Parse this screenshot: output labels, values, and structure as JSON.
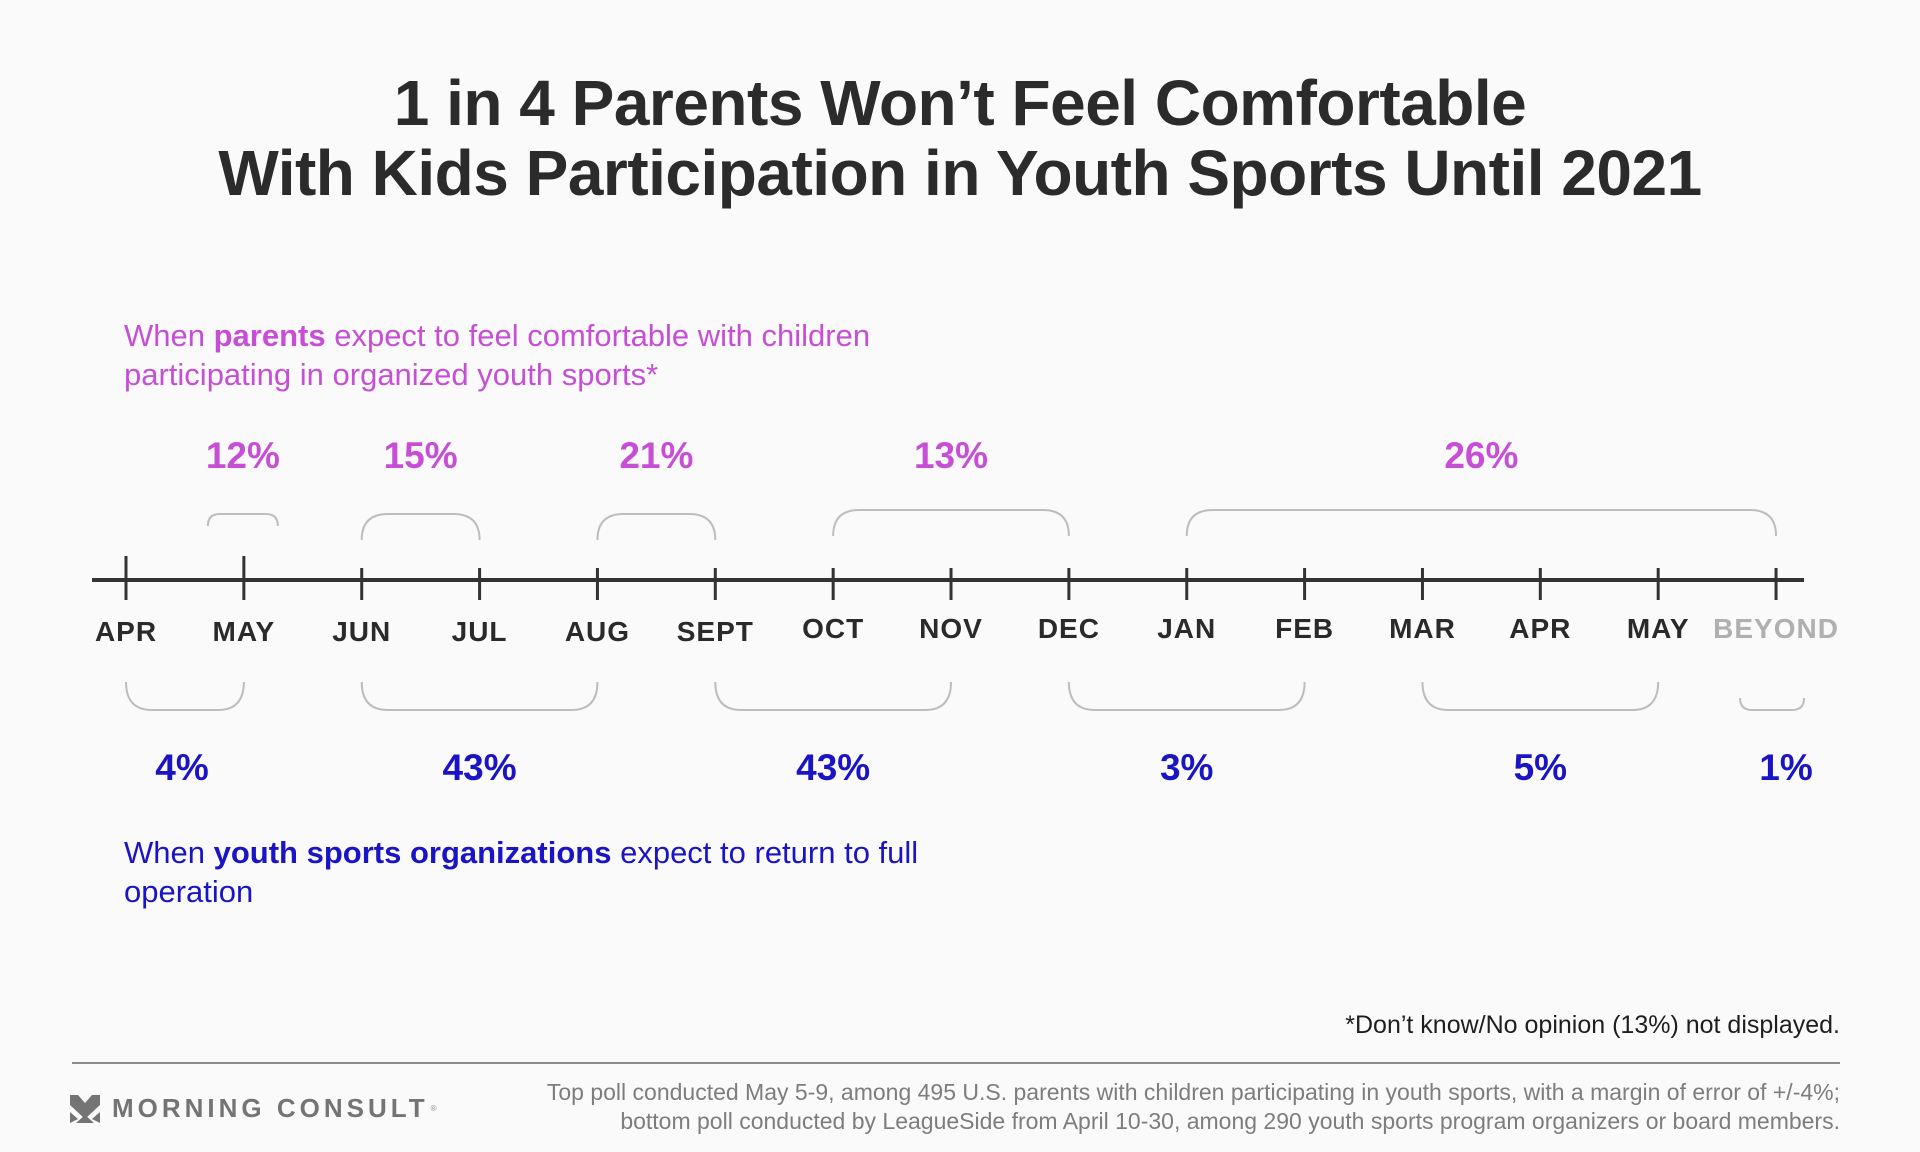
{
  "title": {
    "line1": "1 in 4 Parents Won’t Feel Comfortable",
    "line2": "With Kids Participation in Youth Sports Until 2021"
  },
  "top_label": {
    "prefix": "When ",
    "bold": "parents",
    "suffix": " expect to feel comfortable with children participating in organized youth sports*"
  },
  "bottom_label": {
    "prefix": "When ",
    "bold": "youth sports organizations",
    "suffix": " expect to return to full operation"
  },
  "footnote": "*Don’t know/No opinion (13%) not displayed.",
  "logo": {
    "icon": "morning-consult-chevron-icon",
    "text": "MORNING CONSULT",
    "reg": "®"
  },
  "source": {
    "line1": "Top poll conducted May 5-9, among 495 U.S. parents with children participating in youth sports, with a margin of error of +/-4%;",
    "line2": "bottom poll conducted by LeagueSide from April 10-30, among 290 youth sports program organizers or board members."
  },
  "colors": {
    "parents": "#c64fd6",
    "organizations": "#1a14c4",
    "axis": "#333333",
    "bracket": "#bdbdbd",
    "beyond_label": "#b0b0b0"
  },
  "chart_data": {
    "type": "timeline-brackets",
    "title": "1 in 4 Parents Won’t Feel Comfortable With Kids Participation in Youth Sports Until 2021",
    "axis_ticks": [
      "APR",
      "MAY",
      "JUN",
      "JUL",
      "AUG",
      "SEPT",
      "OCT",
      "NOV",
      "DEC",
      "JAN",
      "FEB",
      "MAR",
      "APR",
      "MAY",
      "BEYOND"
    ],
    "muted_ticks": [
      "BEYOND"
    ],
    "series": [
      {
        "name": "Parents (when they expect to feel comfortable)",
        "position": "above",
        "segments": [
          {
            "label": "12%",
            "value": 12,
            "from": 1,
            "to": 1
          },
          {
            "label": "15%",
            "value": 15,
            "from": 2,
            "to": 3
          },
          {
            "label": "21%",
            "value": 21,
            "from": 4,
            "to": 5
          },
          {
            "label": "13%",
            "value": 13,
            "from": 6,
            "to": 8
          },
          {
            "label": "26%",
            "value": 26,
            "from": 9,
            "to": 14
          }
        ]
      },
      {
        "name": "Youth sports organizations (expected return to full operation)",
        "position": "below",
        "segments": [
          {
            "label": "4%",
            "value": 4,
            "from": 0,
            "to": 1
          },
          {
            "label": "43%",
            "value": 43,
            "from": 2,
            "to": 4
          },
          {
            "label": "43%",
            "value": 43,
            "from": 5,
            "to": 7
          },
          {
            "label": "3%",
            "value": 3,
            "from": 8,
            "to": 10
          },
          {
            "label": "5%",
            "value": 5,
            "from": 11,
            "to": 13
          },
          {
            "label": "1%",
            "value": 1,
            "from": 14,
            "to": 14
          }
        ]
      }
    ],
    "note": "Don’t know/No opinion (13%) not displayed"
  }
}
